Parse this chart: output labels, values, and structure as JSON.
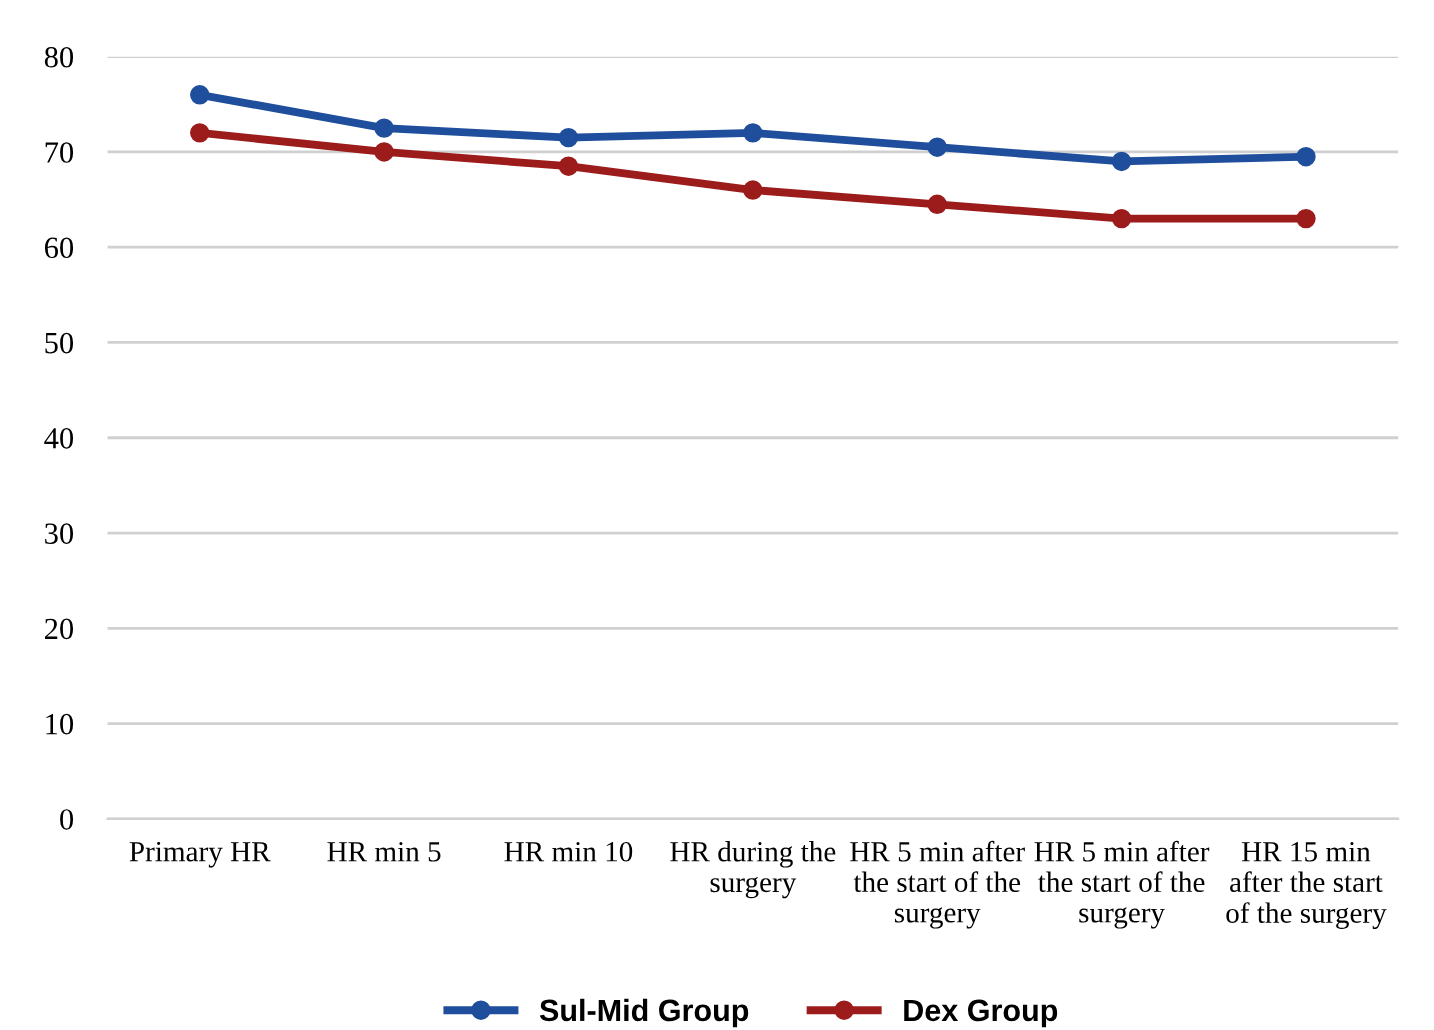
{
  "chart_data": {
    "type": "line",
    "categories": [
      "Primary HR",
      "HR min 5",
      "HR min 10",
      "HR during the\nsurgery",
      "HR 5 min after\nthe start of the\nsurgery",
      "HR 5 min after\nthe start of the\nsurgery",
      "HR 15 min\nafter the start\nof the surgery"
    ],
    "series": [
      {
        "name": "Sul-Mid Group",
        "color": "#1f4e9c",
        "values": [
          76,
          72.5,
          71.5,
          72,
          70.5,
          69,
          69.5
        ]
      },
      {
        "name": "Dex Group",
        "color": "#9c1c1c",
        "values": [
          72,
          70,
          68.5,
          66,
          64.5,
          63,
          63
        ]
      }
    ],
    "ylim": [
      0,
      80
    ],
    "yticks": [
      0,
      10,
      20,
      30,
      40,
      50,
      60,
      70,
      80
    ],
    "grid": "y",
    "legend": "bottom",
    "marker": "circle",
    "line_style": "solid"
  }
}
